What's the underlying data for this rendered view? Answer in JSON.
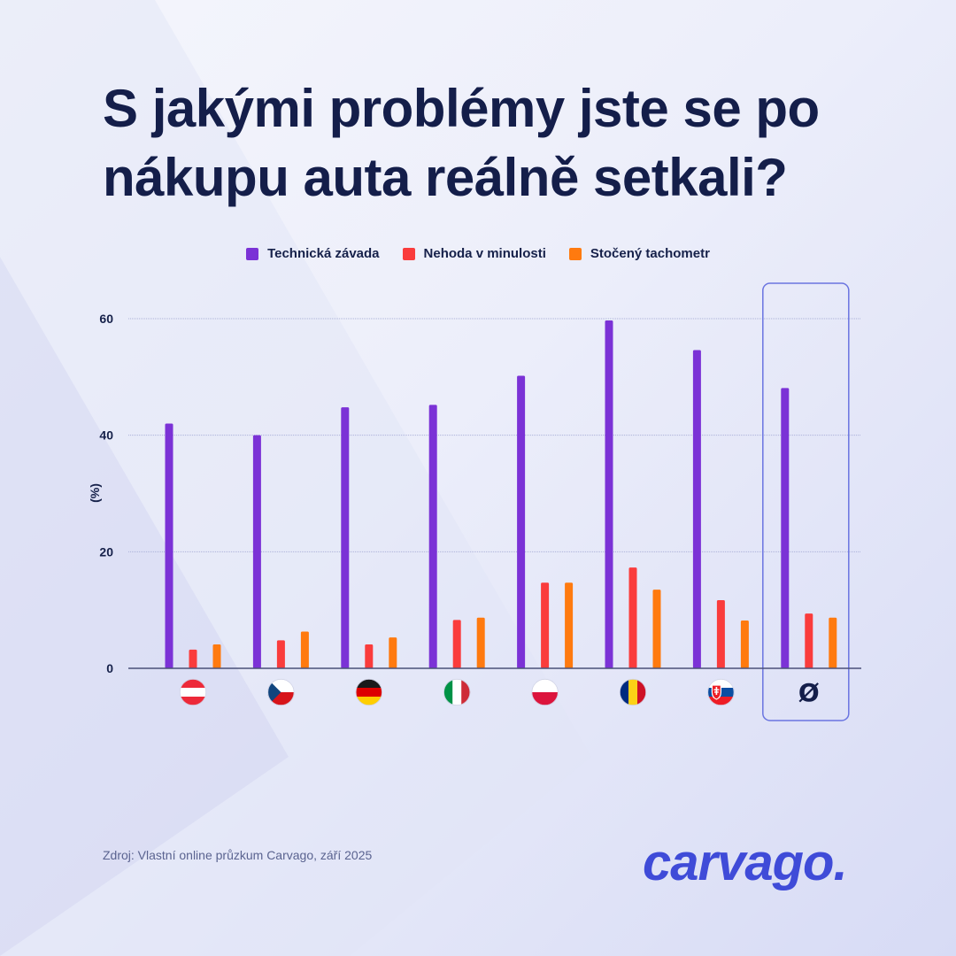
{
  "title": {
    "line1": "S jakými problémy jste se po",
    "line2": "nákupu auta reálně setkali?"
  },
  "colors": {
    "purple": "#7b32d6",
    "red": "#fa3c3c",
    "orange": "#ff7a0f",
    "title": "#141e4a",
    "brand": "#3f4bd8",
    "highlight_frame": "#6a74e0"
  },
  "chart_data": {
    "type": "bar",
    "ylabel": "(%)",
    "ylim": [
      0,
      60
    ],
    "yticks": [
      0,
      20,
      40,
      60
    ],
    "grid": true,
    "legend_position": "top-center",
    "categories": [
      "Rakousko",
      "Česko",
      "Německo",
      "Itálie",
      "Polsko",
      "Rumunsko",
      "Slovensko",
      "Ø"
    ],
    "category_icons": [
      "flag-austria-icon",
      "flag-czechia-icon",
      "flag-germany-icon",
      "flag-italy-icon",
      "flag-poland-icon",
      "flag-romania-icon",
      "flag-slovakia-icon",
      "average-symbol"
    ],
    "average_label": "Ø",
    "highlighted_category_index": 7,
    "series": [
      {
        "name": "Technická závada",
        "color": "#7b32d6",
        "values": [
          42.0,
          40.0,
          44.8,
          45.2,
          50.2,
          59.7,
          54.6,
          48.1
        ]
      },
      {
        "name": "Nehoda v minulosti",
        "color": "#fa3c3c",
        "values": [
          3.2,
          4.8,
          4.1,
          8.3,
          14.7,
          17.3,
          11.7,
          9.4
        ]
      },
      {
        "name": "Stočený tachometr",
        "color": "#ff7a0f",
        "values": [
          4.1,
          6.3,
          5.3,
          8.7,
          14.7,
          13.5,
          8.2,
          8.7
        ]
      }
    ]
  },
  "footer": {
    "source": "Zdroj: Vlastní online průzkum Carvago, září 2025",
    "logo": "carvago."
  }
}
